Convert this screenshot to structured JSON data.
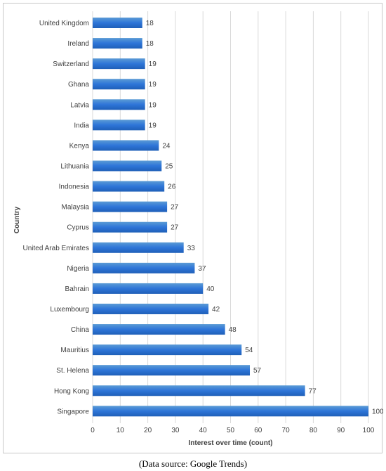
{
  "chart_data": {
    "type": "bar",
    "orientation": "horizontal",
    "categories": [
      "United Kingdom",
      "Ireland",
      "Switzerland",
      "Ghana",
      "Latvia",
      "India",
      "Kenya",
      "Lithuania",
      "Indonesia",
      "Malaysia",
      "Cyprus",
      "United Arab Emirates",
      "Nigeria",
      "Bahrain",
      "Luxembourg",
      "China",
      "Mauritius",
      "St. Helena",
      "Hong Kong",
      "Singapore"
    ],
    "values": [
      18,
      18,
      19,
      19,
      19,
      19,
      24,
      25,
      26,
      27,
      27,
      33,
      37,
      40,
      42,
      48,
      54,
      57,
      77,
      100
    ],
    "xlabel": "Interest over time (count)",
    "ylabel": "Country",
    "xlim": [
      0,
      100
    ],
    "xticks": [
      0,
      10,
      20,
      30,
      40,
      50,
      60,
      70,
      80,
      90,
      100
    ],
    "grid": "vertical",
    "data_labels": true,
    "colors": {
      "bar_top": "#5b9bd5",
      "bar_mid": "#2e75d8",
      "bar_bottom": "#1f5fb8",
      "grid": "#d9d9d9",
      "text": "#404040"
    }
  },
  "caption": "(Data source: Google Trends)"
}
